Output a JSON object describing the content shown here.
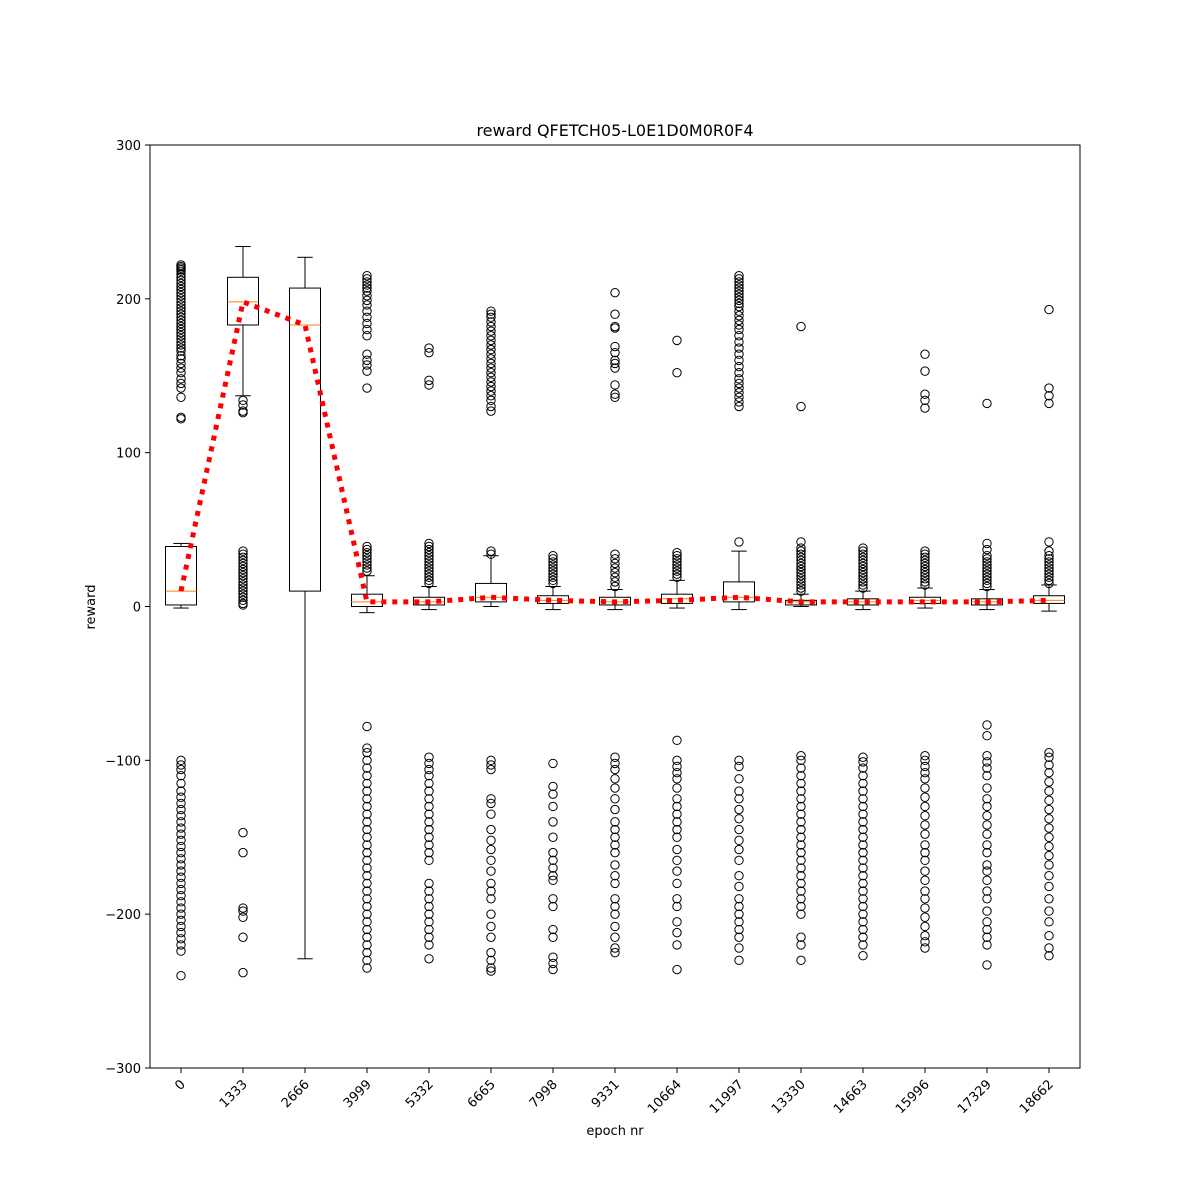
{
  "chart_data": {
    "type": "box",
    "title": "reward QFETCH05-L0E1D0M0R0F4",
    "xlabel": "epoch nr",
    "ylabel": "reward",
    "ylim": [
      -300,
      300
    ],
    "yticks": [
      -300,
      -200,
      -100,
      0,
      100,
      200,
      300
    ],
    "ytick_labels": [
      "−300",
      "−200",
      "−100",
      "0",
      "100",
      "200",
      "300"
    ],
    "categories": [
      "0",
      "1333",
      "2666",
      "3999",
      "5332",
      "6665",
      "7998",
      "9331",
      "10664",
      "11997",
      "13330",
      "14663",
      "15996",
      "17329",
      "18662"
    ],
    "grid": false,
    "colors": {
      "box": "#000000",
      "median": "#ff7f0e",
      "mean_line": "#ff0000",
      "flier": "#000000"
    },
    "boxes": [
      {
        "q1": 1,
        "median": 10,
        "q3": 39,
        "whislo": -1,
        "whishi": 41
      },
      {
        "q1": 183,
        "median": 198,
        "q3": 214,
        "whislo": 137,
        "whishi": 234
      },
      {
        "q1": 10,
        "median": 183,
        "q3": 207,
        "whislo": -229,
        "whishi": 227
      },
      {
        "q1": 0,
        "median": 3,
        "q3": 8,
        "whislo": -4,
        "whishi": 20
      },
      {
        "q1": 1,
        "median": 3,
        "q3": 6,
        "whislo": -2,
        "whishi": 13
      },
      {
        "q1": 3,
        "median": 6,
        "q3": 15,
        "whislo": 0,
        "whishi": 33
      },
      {
        "q1": 2,
        "median": 4,
        "q3": 7,
        "whislo": -2,
        "whishi": 13
      },
      {
        "q1": 1,
        "median": 3,
        "q3": 6,
        "whislo": -2,
        "whishi": 11
      },
      {
        "q1": 2,
        "median": 5,
        "q3": 8,
        "whislo": -1,
        "whishi": 17
      },
      {
        "q1": 3,
        "median": 6,
        "q3": 16,
        "whislo": -2,
        "whishi": 36
      },
      {
        "q1": 1,
        "median": 3,
        "q3": 4,
        "whislo": 0,
        "whishi": 8
      },
      {
        "q1": 1,
        "median": 3,
        "q3": 5,
        "whislo": -2,
        "whishi": 10
      },
      {
        "q1": 2,
        "median": 4,
        "q3": 6,
        "whislo": -1,
        "whishi": 12
      },
      {
        "q1": 1,
        "median": 3,
        "q3": 5,
        "whislo": -2,
        "whishi": 11
      },
      {
        "q1": 2,
        "median": 4,
        "q3": 7,
        "whislo": -3,
        "whishi": 14
      }
    ],
    "means": [
      10,
      198,
      183,
      3,
      3,
      6,
      4,
      3,
      4,
      6,
      3,
      3,
      3,
      3,
      4
    ],
    "fliers": [
      [
        222,
        221,
        220,
        219,
        218,
        216,
        214,
        212,
        210,
        208,
        206,
        204,
        202,
        200,
        198,
        196,
        194,
        192,
        190,
        188,
        186,
        184,
        182,
        180,
        178,
        176,
        174,
        172,
        170,
        168,
        166,
        163,
        161,
        158,
        155,
        152,
        148,
        145,
        142,
        136,
        123,
        122,
        -100,
        -103,
        -106,
        -110,
        -115,
        -120,
        -124,
        -128,
        -132,
        -136,
        -140,
        -144,
        -148,
        -152,
        -156,
        -160,
        -164,
        -168,
        -172,
        -176,
        -180,
        -184,
        -188,
        -192,
        -196,
        -200,
        -204,
        -208,
        -212,
        -216,
        -220,
        -224,
        -240
      ],
      [
        36,
        34,
        32,
        30,
        28,
        26,
        24,
        22,
        20,
        18,
        16,
        14,
        12,
        10,
        8,
        6,
        4,
        2,
        1,
        134,
        131,
        127,
        126,
        -147,
        -160,
        -196,
        -198,
        -202,
        -215,
        -238
      ],
      [],
      [
        215,
        213,
        211,
        209,
        207,
        205,
        202,
        199,
        196,
        192,
        188,
        184,
        180,
        176,
        164,
        160,
        157,
        153,
        142,
        39,
        37,
        35,
        33,
        31,
        29,
        27,
        25,
        23,
        -78,
        -92,
        -95,
        -100,
        -105,
        -110,
        -115,
        -120,
        -125,
        -130,
        -135,
        -140,
        -145,
        -150,
        -155,
        -160,
        -165,
        -170,
        -175,
        -180,
        -185,
        -190,
        -195,
        -200,
        -205,
        -210,
        -215,
        -220,
        -225,
        -230,
        -235
      ],
      [
        168,
        165,
        147,
        144,
        41,
        39,
        37,
        35,
        33,
        31,
        29,
        27,
        25,
        23,
        21,
        19,
        17,
        15,
        -98,
        -102,
        -106,
        -110,
        -115,
        -120,
        -125,
        -130,
        -135,
        -140,
        -145,
        -150,
        -155,
        -160,
        -165,
        -180,
        -185,
        -190,
        -195,
        -200,
        -205,
        -210,
        -215,
        -220,
        -229
      ],
      [
        192,
        190,
        188,
        185,
        182,
        179,
        176,
        173,
        170,
        167,
        164,
        161,
        158,
        155,
        152,
        149,
        146,
        143,
        140,
        137,
        134,
        130,
        127,
        36,
        34,
        -100,
        -103,
        -106,
        -125,
        -128,
        -135,
        -145,
        -152,
        -158,
        -165,
        -172,
        -180,
        -185,
        -190,
        -200,
        -208,
        -215,
        -225,
        -230,
        -235,
        -237
      ],
      [
        33,
        31,
        29,
        27,
        25,
        23,
        21,
        19,
        17,
        15,
        -102,
        -117,
        -122,
        -130,
        -140,
        -150,
        -160,
        -165,
        -170,
        -175,
        -178,
        -190,
        -195,
        -210,
        -215,
        -228,
        -232,
        -236
      ],
      [
        204,
        190,
        182,
        181,
        169,
        165,
        160,
        158,
        155,
        144,
        138,
        136,
        34,
        31,
        28,
        25,
        22,
        19,
        16,
        13,
        -98,
        -102,
        -106,
        -112,
        -118,
        -125,
        -132,
        -140,
        -145,
        -150,
        -155,
        -160,
        -168,
        -175,
        -180,
        -190,
        -195,
        -200,
        -208,
        -215,
        -222,
        -225
      ],
      [
        173,
        152,
        35,
        33,
        31,
        29,
        27,
        25,
        23,
        21,
        19,
        -87,
        -100,
        -104,
        -108,
        -112,
        -118,
        -125,
        -130,
        -135,
        -140,
        -145,
        -150,
        -158,
        -165,
        -172,
        -180,
        -190,
        -195,
        -205,
        -212,
        -220,
        -236
      ],
      [
        215,
        213,
        211,
        209,
        207,
        205,
        203,
        201,
        199,
        197,
        195,
        192,
        189,
        186,
        183,
        180,
        176,
        172,
        168,
        164,
        160,
        156,
        152,
        148,
        145,
        142,
        139,
        136,
        133,
        130,
        42,
        -100,
        -104,
        -112,
        -120,
        -125,
        -132,
        -138,
        -145,
        -152,
        -158,
        -165,
        -175,
        -182,
        -190,
        -195,
        -200,
        -205,
        -210,
        -215,
        -222,
        -230
      ],
      [
        182,
        130,
        42,
        38,
        36,
        34,
        32,
        30,
        28,
        26,
        24,
        22,
        20,
        18,
        16,
        14,
        12,
        10,
        -97,
        -100,
        -105,
        -110,
        -115,
        -120,
        -125,
        -130,
        -135,
        -140,
        -145,
        -150,
        -155,
        -160,
        -165,
        -170,
        -175,
        -180,
        -185,
        -190,
        -195,
        -200,
        -215,
        -220,
        -230
      ],
      [
        38,
        36,
        34,
        32,
        30,
        28,
        26,
        24,
        22,
        20,
        18,
        16,
        14,
        12,
        -98,
        -101,
        -105,
        -110,
        -115,
        -120,
        -125,
        -130,
        -135,
        -140,
        -145,
        -150,
        -155,
        -160,
        -165,
        -170,
        -175,
        -180,
        -185,
        -190,
        -195,
        -200,
        -205,
        -210,
        -215,
        -220,
        -227
      ],
      [
        164,
        153,
        138,
        134,
        129,
        36,
        34,
        32,
        30,
        28,
        26,
        24,
        22,
        20,
        18,
        16,
        14,
        -97,
        -100,
        -104,
        -108,
        -112,
        -118,
        -124,
        -130,
        -136,
        -142,
        -148,
        -155,
        -160,
        -165,
        -172,
        -178,
        -185,
        -190,
        -196,
        -202,
        -208,
        -214,
        -218,
        -222
      ],
      [
        132,
        41,
        37,
        33,
        31,
        29,
        27,
        25,
        23,
        21,
        19,
        17,
        15,
        13,
        -77,
        -84,
        -97,
        -101,
        -105,
        -110,
        -118,
        -125,
        -130,
        -136,
        -142,
        -148,
        -155,
        -160,
        -168,
        -172,
        -178,
        -185,
        -190,
        -198,
        -205,
        -210,
        -215,
        -220,
        -233
      ],
      [
        193,
        142,
        137,
        132,
        42,
        36,
        33,
        31,
        29,
        27,
        25,
        23,
        21,
        19,
        17,
        15,
        -95,
        -98,
        -103,
        -108,
        -114,
        -120,
        -126,
        -132,
        -138,
        -144,
        -150,
        -156,
        -162,
        -168,
        -175,
        -182,
        -190,
        -198,
        -205,
        -214,
        -222,
        -227
      ]
    ]
  }
}
